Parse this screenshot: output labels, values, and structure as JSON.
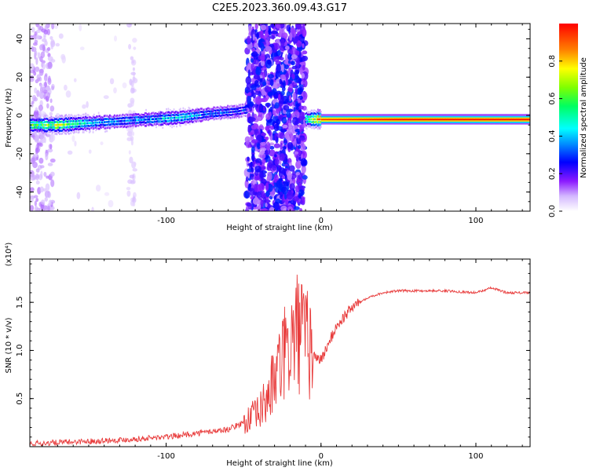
{
  "title": "C2E5.2023.360.09.43.G17",
  "chart_data": [
    {
      "type": "heatmap",
      "xlabel": "Height of straight line (km)",
      "ylabel": "Frequency (Hz)",
      "xlim": [
        -188,
        135
      ],
      "ylim": [
        -50,
        48
      ],
      "x_ticks": [
        -100,
        0,
        100
      ],
      "x_tick_labels": [
        "-100",
        "0",
        "100"
      ],
      "y_ticks": [
        -40,
        -20,
        0,
        20,
        40
      ],
      "y_tick_labels": [
        "-40",
        "-20",
        "0",
        "20",
        "40"
      ],
      "colorbar": {
        "label": "Normalized spectral amplitude",
        "range": [
          0.0,
          1.0
        ],
        "ticks": [
          0.0,
          0.2,
          0.4,
          0.6,
          0.8
        ],
        "tick_labels": [
          "0.0",
          "0.2",
          "0.4",
          "0.6",
          "0.8"
        ],
        "colormap": "rainbow"
      },
      "ridge": {
        "x": [
          -188,
          -170,
          -150,
          -130,
          -110,
          -90,
          -70,
          -55,
          -48,
          -10,
          0,
          50,
          100,
          135
        ],
        "y": [
          -5,
          -5,
          -4,
          -3,
          -2,
          -1,
          1,
          2,
          3,
          -2,
          -2,
          -2,
          -2,
          -2
        ],
        "amplitude": [
          0.6,
          0.7,
          0.45,
          0.35,
          0.4,
          0.45,
          0.35,
          0.3,
          0.3,
          0.5,
          0.95,
          1.0,
          1.0,
          1.0
        ]
      },
      "noise_band": {
        "x_range": [
          -48,
          -10
        ],
        "amplitude_range": [
          0.1,
          0.3
        ]
      }
    },
    {
      "type": "line",
      "xlabel": "Height of straight line (km)",
      "ylabel": "SNR (10 * v/v)",
      "y_multiplier": "(x10⁴)",
      "xlim": [
        -188,
        135
      ],
      "ylim": [
        0,
        1.95
      ],
      "x_ticks": [
        -100,
        0,
        100
      ],
      "x_tick_labels": [
        "-100",
        "0",
        "100"
      ],
      "y_ticks": [
        0.5,
        1.0,
        1.5
      ],
      "y_tick_labels": [
        "0.5",
        "1.0",
        "1.5"
      ],
      "series": [
        {
          "color": "#e83b3b",
          "x": [
            -188,
            -160,
            -130,
            -100,
            -80,
            -60,
            -50,
            -40,
            -35,
            -30,
            -25,
            -20,
            -15,
            -10,
            -5,
            0,
            10,
            20,
            30,
            40,
            50,
            60,
            80,
            100,
            110,
            120,
            135
          ],
          "y": [
            0.03,
            0.05,
            0.07,
            0.1,
            0.14,
            0.18,
            0.25,
            0.35,
            0.5,
            0.7,
            0.9,
            1.05,
            1.2,
            1.1,
            0.95,
            0.9,
            1.25,
            1.45,
            1.55,
            1.6,
            1.62,
            1.62,
            1.62,
            1.6,
            1.65,
            1.6,
            1.6
          ]
        }
      ]
    }
  ]
}
